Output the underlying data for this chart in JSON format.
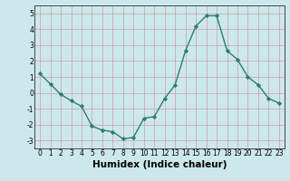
{
  "x": [
    0,
    1,
    2,
    3,
    4,
    5,
    6,
    7,
    8,
    9,
    10,
    11,
    12,
    13,
    14,
    15,
    16,
    17,
    18,
    19,
    20,
    21,
    22,
    23
  ],
  "y": [
    1.2,
    0.55,
    -0.1,
    -0.5,
    -0.85,
    -2.1,
    -2.35,
    -2.45,
    -2.9,
    -2.8,
    -1.6,
    -1.5,
    -0.35,
    0.5,
    2.65,
    4.2,
    4.85,
    4.85,
    2.65,
    2.1,
    1.0,
    0.5,
    -0.35,
    -0.65
  ],
  "line_color": "#2e7d6e",
  "marker": "D",
  "marker_size": 2.2,
  "bg_color": "#cce8ec",
  "grid_color": "#c9a0a0",
  "xlabel": "Humidex (Indice chaleur)",
  "xlim": [
    -0.5,
    23.5
  ],
  "ylim": [
    -3.5,
    5.5
  ],
  "yticks": [
    -3,
    -2,
    -1,
    0,
    1,
    2,
    3,
    4,
    5
  ],
  "xticks": [
    0,
    1,
    2,
    3,
    4,
    5,
    6,
    7,
    8,
    9,
    10,
    11,
    12,
    13,
    14,
    15,
    16,
    17,
    18,
    19,
    20,
    21,
    22,
    23
  ],
  "tick_fontsize": 5.5,
  "label_fontsize": 7.5,
  "linewidth": 1.0
}
